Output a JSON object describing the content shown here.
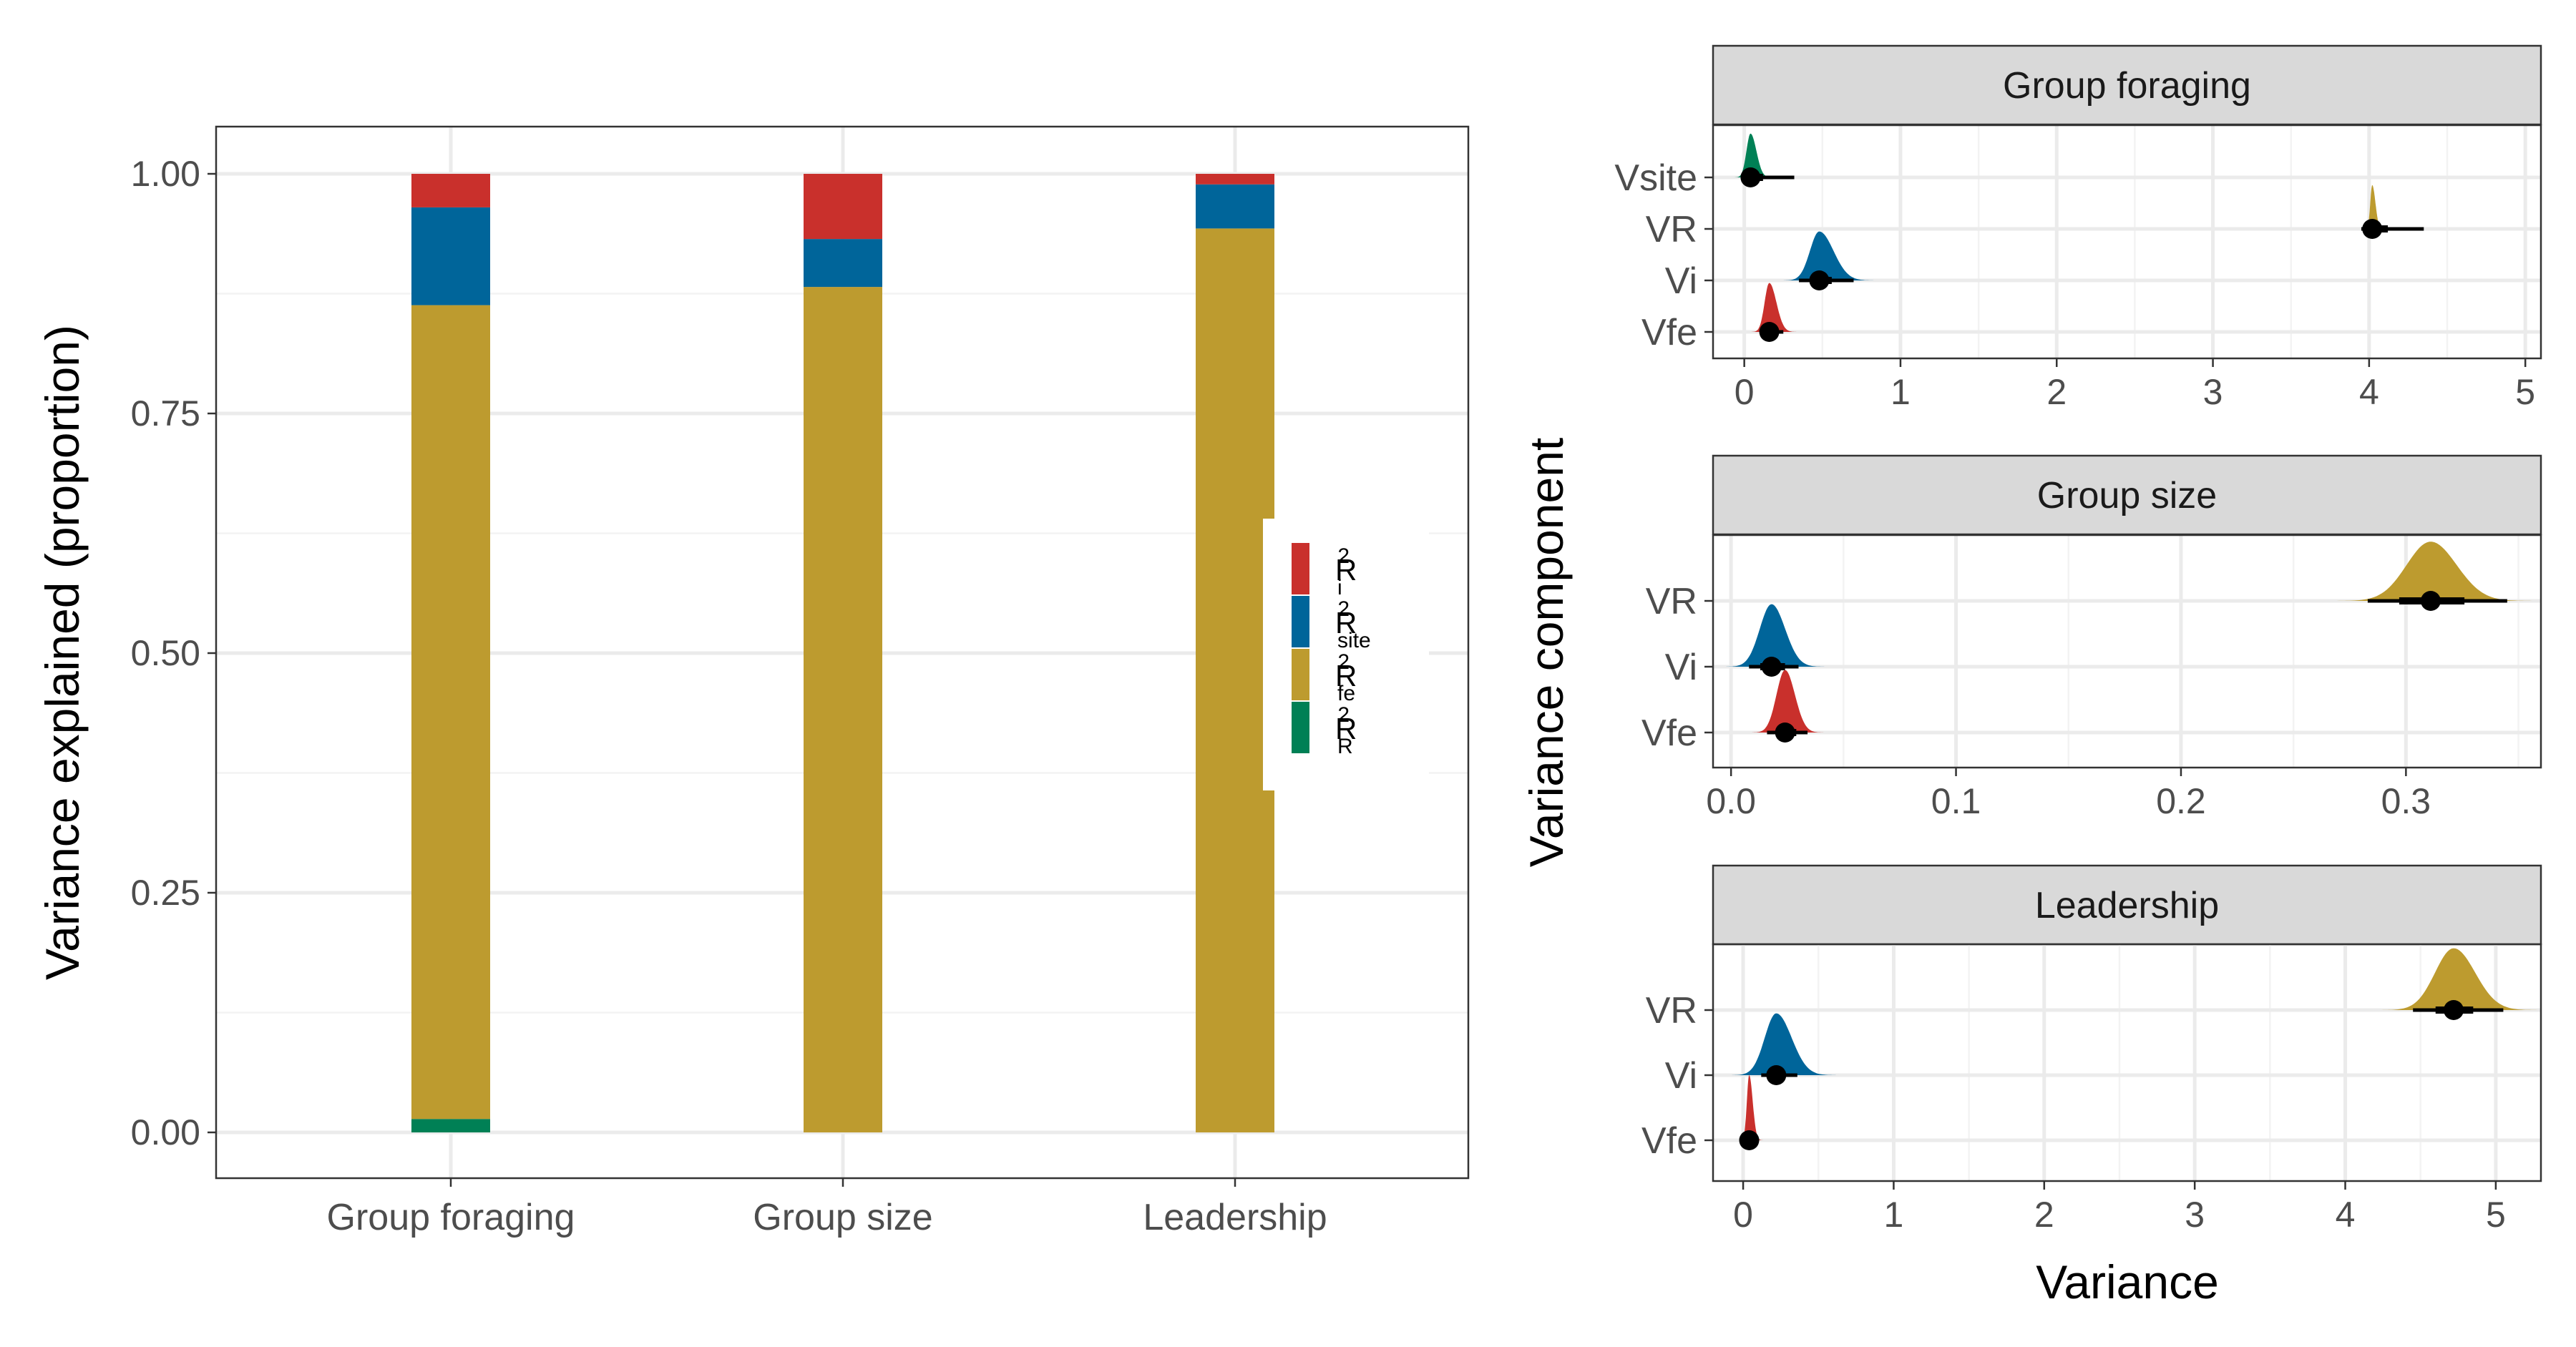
{
  "colors": {
    "r2_i": "#c9302c",
    "r2_site": "#00659a",
    "r2_fe": "#bd9b2f",
    "r2_R": "#008055",
    "point": "#000000",
    "strip_fill": "#d9d9d9",
    "grid": "#ebebeb"
  },
  "chart_data": [
    {
      "type": "bar",
      "stacked": true,
      "categories": [
        "Group foraging",
        "Group size",
        "Leadership"
      ],
      "ylabel": "Variance explained (proportion)",
      "xlabel": "",
      "ylim": [
        0,
        1
      ],
      "yticks": [
        "0.00",
        "0.25",
        "0.50",
        "0.75",
        "1.00"
      ],
      "grid": true,
      "legend": {
        "placement": "right-inside",
        "entries": [
          {
            "key": "r2_i",
            "base": "R",
            "sup": "2",
            "sub": "i"
          },
          {
            "key": "r2_site",
            "base": "R",
            "sup": "2",
            "sub": "site"
          },
          {
            "key": "r2_fe",
            "base": "R",
            "sup": "2",
            "sub": "fe"
          },
          {
            "key": "r2_R",
            "base": "R",
            "sup": "2",
            "sub": "R"
          }
        ]
      },
      "series": [
        {
          "key": "r2_R",
          "values": [
            0.014,
            0.0,
            0.0
          ]
        },
        {
          "key": "r2_fe",
          "values": [
            0.849,
            0.882,
            0.943
          ]
        },
        {
          "key": "r2_site",
          "values": [
            0.102,
            0.05,
            0.046
          ]
        },
        {
          "key": "r2_i",
          "values": [
            0.035,
            0.068,
            0.011
          ]
        }
      ]
    },
    {
      "type": "scatter",
      "subtype": "posterior density with point estimate and interval",
      "ylabel": "Variance component",
      "xlabel": "Variance",
      "facets": [
        {
          "title": "Group foraging",
          "xlim": [
            -0.2,
            5.1
          ],
          "xticks": [
            0,
            1,
            2,
            3,
            4,
            5
          ],
          "xtick_labels": [
            "0",
            "1",
            "2",
            "3",
            "4",
            "5"
          ],
          "components": [
            {
              "label": "Vsite",
              "color_key": "r2_R",
              "median": 0.04,
              "lo": 0.0,
              "hi": 0.32,
              "mid_lo": 0.01,
              "mid_hi": 0.12,
              "sd": 0.03,
              "height": 0.85,
              "skew": 0.25
            },
            {
              "label": "VR",
              "color_key": "r2_fe",
              "median": 4.02,
              "lo": 3.95,
              "hi": 4.35,
              "mid_lo": 3.99,
              "mid_hi": 4.12,
              "sd": 0.015,
              "height": 0.85,
              "skew": 0.35
            },
            {
              "label": "Vi",
              "color_key": "r2_site",
              "median": 0.48,
              "lo": 0.35,
              "hi": 0.7,
              "mid_lo": 0.42,
              "mid_hi": 0.56,
              "sd": 0.07,
              "height": 0.95,
              "skew": 0.3
            },
            {
              "label": "Vfe",
              "color_key": "r2_i",
              "median": 0.16,
              "lo": 0.11,
              "hi": 0.25,
              "mid_lo": 0.13,
              "mid_hi": 0.2,
              "sd": 0.035,
              "height": 0.95,
              "skew": 0.3
            }
          ]
        },
        {
          "title": "Group size",
          "xlim": [
            -0.008,
            0.36
          ],
          "xticks": [
            0.0,
            0.1,
            0.2,
            0.3
          ],
          "xtick_labels": [
            "0.0",
            "0.1",
            "0.2",
            "0.3"
          ],
          "components": [
            {
              "label": "VR",
              "color_key": "r2_fe",
              "median": 0.311,
              "lo": 0.283,
              "hi": 0.345,
              "mid_lo": 0.297,
              "mid_hi": 0.326,
              "sd": 0.011,
              "height": 0.9,
              "skew": 0.05
            },
            {
              "label": "Vi",
              "color_key": "r2_site",
              "median": 0.018,
              "lo": 0.008,
              "hi": 0.03,
              "mid_lo": 0.013,
              "mid_hi": 0.024,
              "sd": 0.0055,
              "height": 0.95,
              "skew": 0.1
            },
            {
              "label": "Vfe",
              "color_key": "r2_i",
              "median": 0.024,
              "lo": 0.016,
              "hi": 0.034,
              "mid_lo": 0.02,
              "mid_hi": 0.029,
              "sd": 0.004,
              "height": 0.95,
              "skew": 0.1
            }
          ]
        },
        {
          "title": "Leadership",
          "xlim": [
            -0.2,
            5.3
          ],
          "xticks": [
            0,
            1,
            2,
            3,
            4,
            5
          ],
          "xtick_labels": [
            "0",
            "1",
            "2",
            "3",
            "4",
            "5"
          ],
          "components": [
            {
              "label": "VR",
              "color_key": "r2_fe",
              "median": 4.72,
              "lo": 4.45,
              "hi": 5.05,
              "mid_lo": 4.6,
              "mid_hi": 4.85,
              "sd": 0.13,
              "height": 0.95,
              "skew": 0.1
            },
            {
              "label": "Vi",
              "color_key": "r2_site",
              "median": 0.22,
              "lo": 0.12,
              "hi": 0.36,
              "mid_lo": 0.17,
              "mid_hi": 0.28,
              "sd": 0.085,
              "height": 0.95,
              "skew": 0.2
            },
            {
              "label": "Vfe",
              "color_key": "r2_i",
              "median": 0.04,
              "lo": 0.01,
              "hi": 0.09,
              "mid_lo": 0.02,
              "mid_hi": 0.06,
              "sd": 0.018,
              "height": 1.0,
              "skew": 0.3
            }
          ]
        }
      ]
    }
  ]
}
